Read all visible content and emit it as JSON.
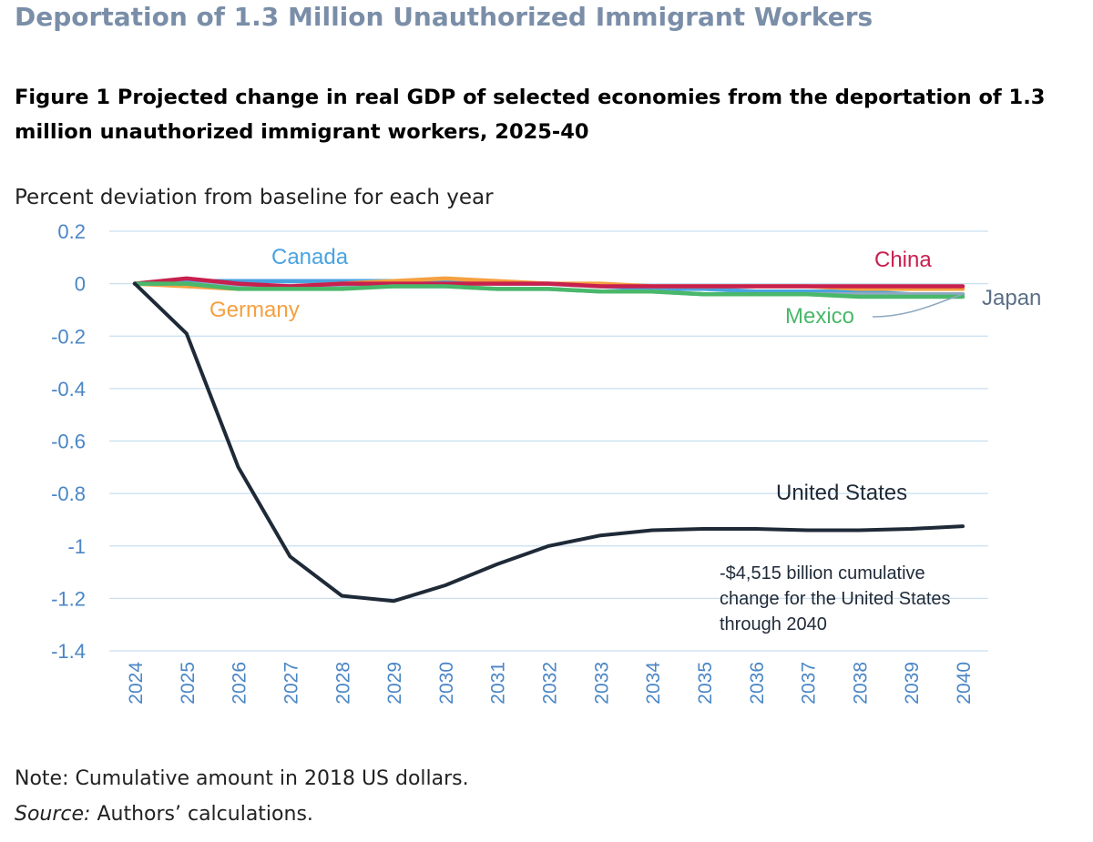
{
  "page": {
    "title": "Deportation of 1.3 Million Unauthorized Immigrant Workers",
    "figure_title_line1": "Figure 1 Projected change in real GDP of selected economies from the deportation of 1.3",
    "figure_title_line2": "million unauthorized immigrant workers, 2025-40",
    "note": "Note: Cumulative amount in 2018 US dollars.",
    "source_label": "Source:",
    "source_text": " Authors’ calculations."
  },
  "chart_data": {
    "type": "line",
    "ylabel": "Percent deviation from baseline for each year",
    "xlabel": "",
    "ylim": [
      -1.4,
      0.2
    ],
    "yticks": [
      0.2,
      0,
      -0.2,
      -0.4,
      -0.6,
      -0.8,
      -1,
      -1.2,
      -1.4
    ],
    "ytick_labels": [
      "0.2",
      "0",
      "-0.2",
      "-0.4",
      "-0.6",
      "-0.8",
      "-1",
      "-1.2",
      "-1.4"
    ],
    "x": [
      "2024",
      "2025",
      "2026",
      "2027",
      "2028",
      "2029",
      "2030",
      "2031",
      "2032",
      "2033",
      "2034",
      "2035",
      "2036",
      "2037",
      "2038",
      "2039",
      "2040"
    ],
    "grid": true,
    "series": [
      {
        "name": "Canada",
        "color": "#4aa3df",
        "values": [
          0,
          0.01,
          0.01,
          0.01,
          0.01,
          0.01,
          0.01,
          0.0,
          0.0,
          -0.01,
          -0.02,
          -0.02,
          -0.03,
          -0.03,
          -0.03,
          -0.04,
          -0.04
        ]
      },
      {
        "name": "Germany",
        "color": "#f5a040",
        "values": [
          0,
          -0.01,
          -0.02,
          -0.01,
          0.0,
          0.01,
          0.02,
          0.01,
          0.0,
          0.0,
          -0.01,
          -0.01,
          -0.01,
          -0.01,
          -0.02,
          -0.02,
          -0.02
        ]
      },
      {
        "name": "Japan",
        "color": "#8fa9c1",
        "values": [
          0,
          0.0,
          -0.01,
          -0.01,
          -0.01,
          -0.01,
          -0.01,
          -0.02,
          -0.02,
          -0.03,
          -0.03,
          -0.04,
          -0.04,
          -0.04,
          -0.04,
          -0.04,
          -0.04
        ]
      },
      {
        "name": "China",
        "color": "#c8204e",
        "values": [
          0,
          0.02,
          0.0,
          -0.01,
          0.0,
          0.0,
          0.0,
          0.0,
          0.0,
          -0.01,
          -0.01,
          -0.01,
          -0.01,
          -0.01,
          -0.01,
          -0.01,
          -0.01
        ]
      },
      {
        "name": "Mexico",
        "color": "#49b86a",
        "values": [
          0,
          0.0,
          -0.02,
          -0.02,
          -0.02,
          -0.01,
          -0.01,
          -0.02,
          -0.02,
          -0.03,
          -0.03,
          -0.04,
          -0.04,
          -0.04,
          -0.05,
          -0.05,
          -0.05
        ]
      },
      {
        "name": "United States",
        "color": "#1f2a38",
        "values": [
          0,
          -0.19,
          -0.7,
          -1.04,
          -1.19,
          -1.21,
          -1.15,
          -1.07,
          -1.0,
          -0.96,
          -0.94,
          -0.935,
          -0.935,
          -0.94,
          -0.94,
          -0.935,
          -0.925
        ]
      }
    ],
    "labels": [
      {
        "series": "Canada",
        "text": "Canada",
        "color": "#4aa3df"
      },
      {
        "series": "Germany",
        "text": "Germany",
        "color": "#f5a040"
      },
      {
        "series": "China",
        "text": "China",
        "color": "#c8204e"
      },
      {
        "series": "Mexico",
        "text": "Mexico",
        "color": "#49b86a"
      },
      {
        "series": "Japan",
        "text": "Japan",
        "color": "#5a6f86"
      },
      {
        "series": "United States",
        "text": "United States",
        "color": "#1f2a38"
      }
    ],
    "annotation": [
      "-$4,515 billion cumulative",
      "change for the United States",
      "through 2040"
    ],
    "tick_color": "#4a86c5",
    "grid_color": "#c9dff0"
  }
}
